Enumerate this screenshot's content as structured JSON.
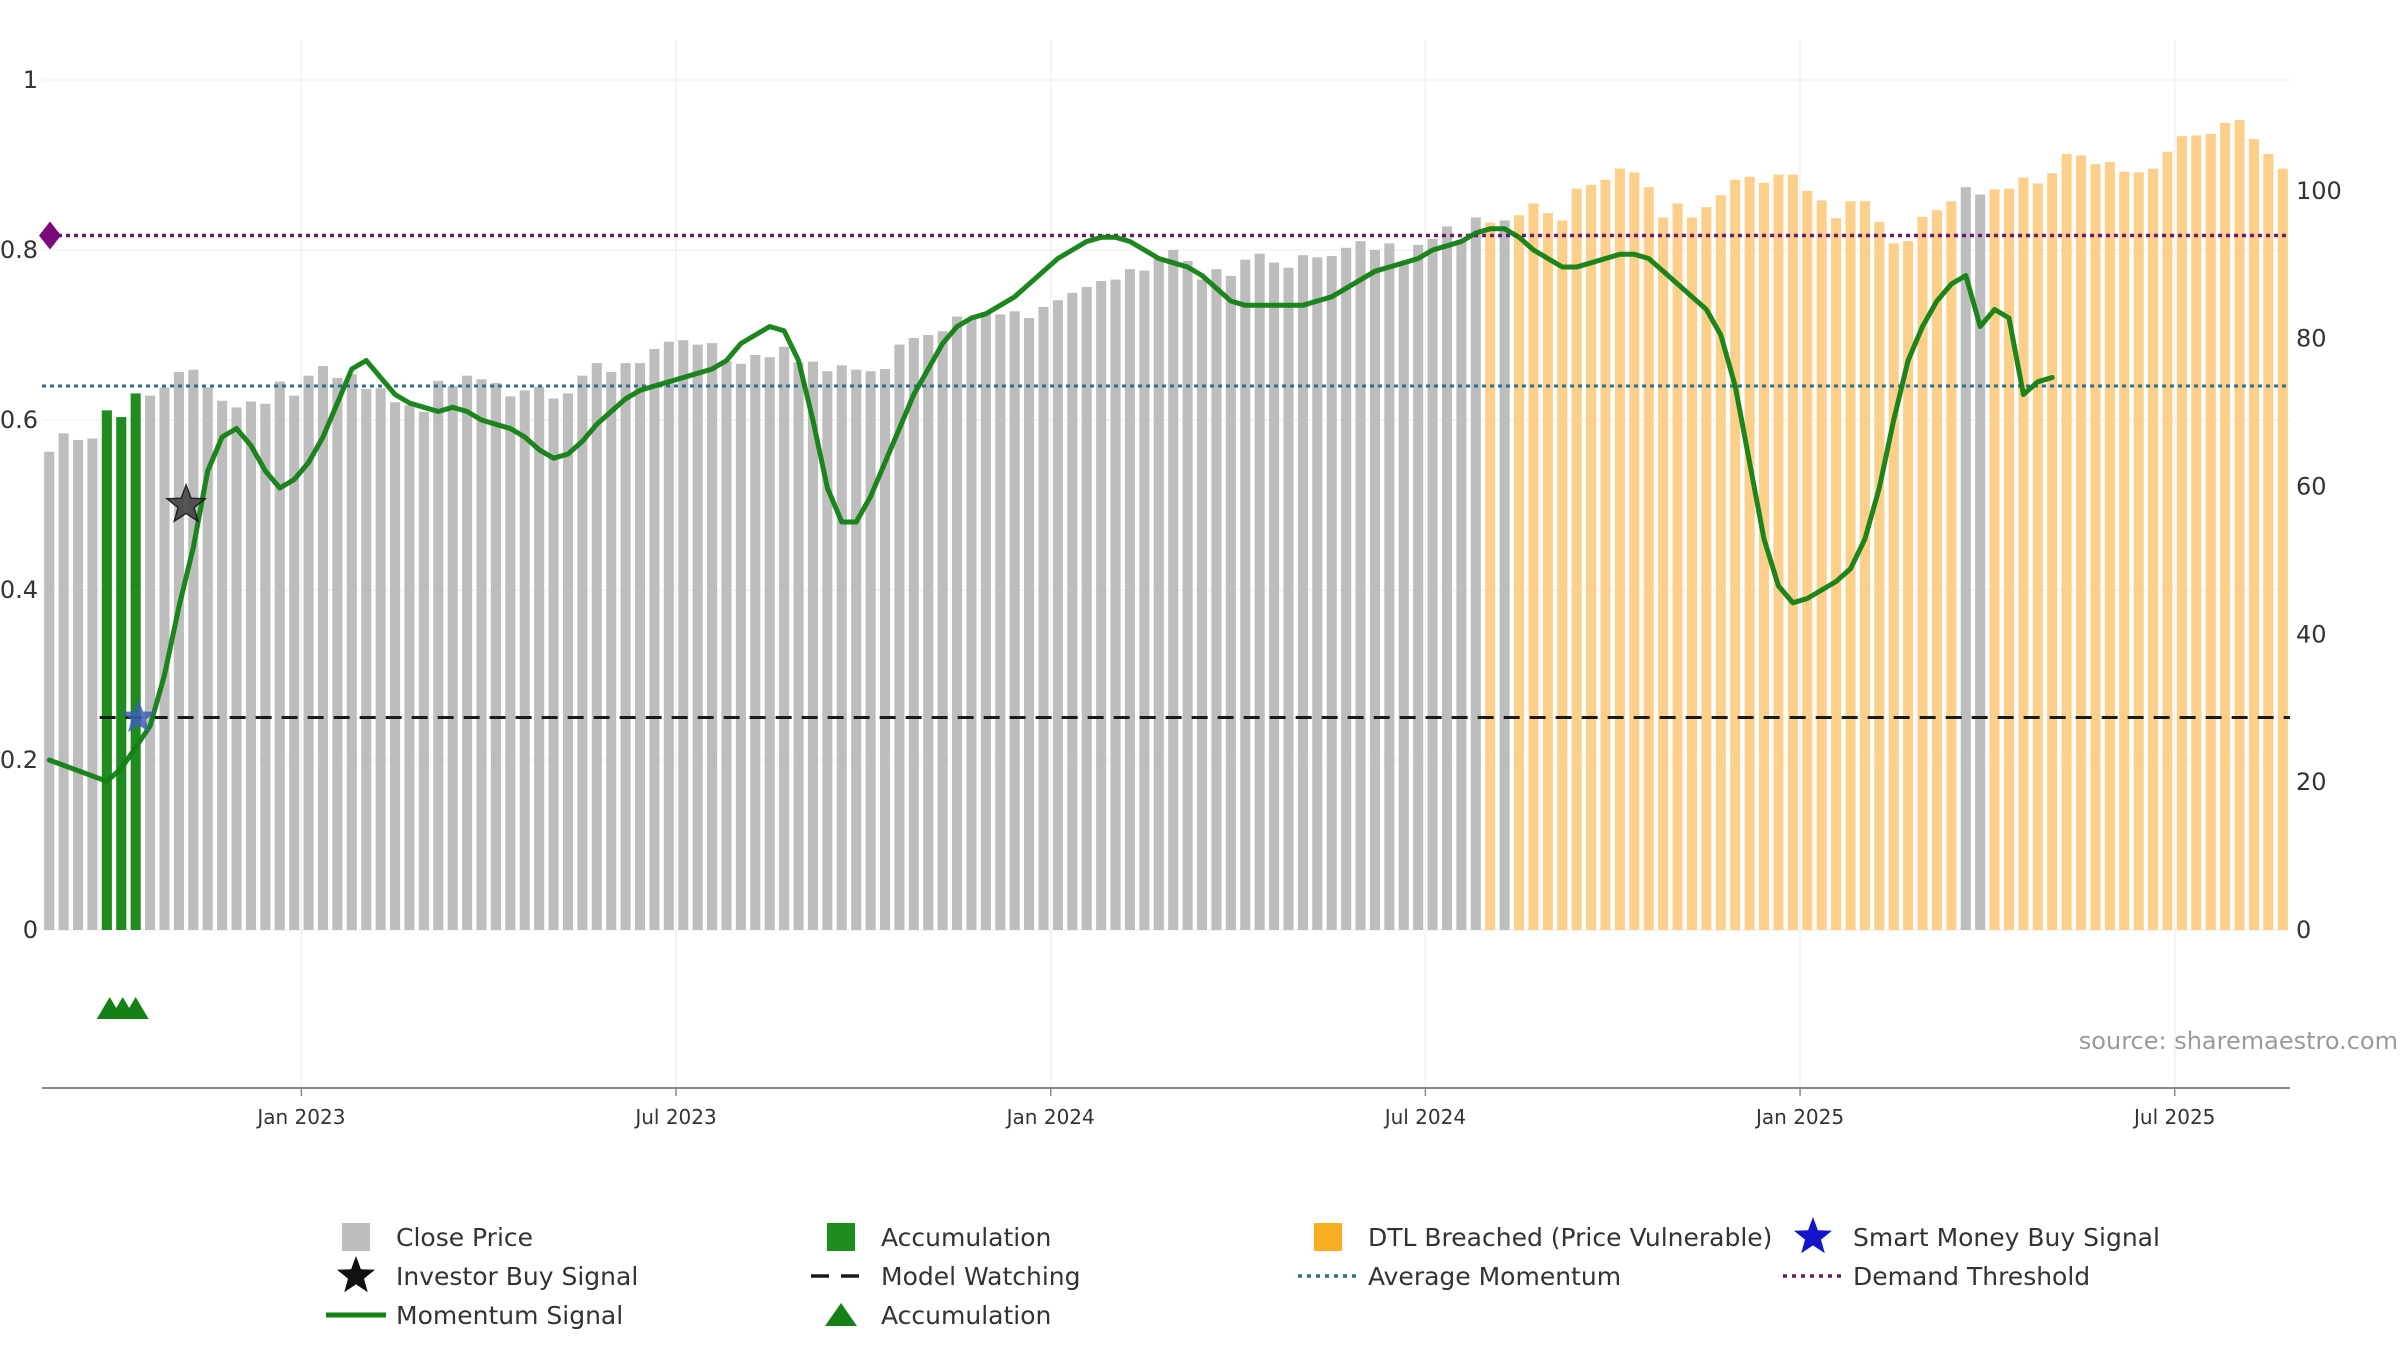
{
  "chart_data": {
    "type": "bar",
    "title": "",
    "source": "source: sharemaestro.com",
    "x_ticks": [
      "Jan 2023",
      "Jul 2023",
      "Jan 2024",
      "Jul 2024",
      "Jan 2025",
      "Jul 2025"
    ],
    "x_tick_weeks": [
      18,
      44,
      70,
      96,
      122,
      148
    ],
    "weeks": 156,
    "left_axis": {
      "range": [
        0,
        1
      ],
      "ticks": [
        0,
        0.2,
        0.4,
        0.6,
        0.8,
        1
      ],
      "tick_labels": [
        "0",
        "0.2",
        "0.4",
        "0.6",
        "0.8",
        "1"
      ]
    },
    "right_axis": {
      "range": [
        0,
        115
      ],
      "ticks": [
        0,
        20,
        40,
        60,
        80,
        100
      ],
      "tick_labels": [
        "0",
        "20",
        "40",
        "60",
        "80",
        "100"
      ]
    },
    "close_price": [
      64.7,
      67.2,
      66.3,
      66.5,
      70.3,
      69.4,
      72.6,
      72.3,
      73.4,
      75.5,
      75.8,
      73.4,
      71.6,
      70.7,
      71.5,
      71.2,
      74.2,
      72.3,
      75.0,
      76.3,
      74.7,
      75.2,
      73.2,
      73.3,
      71.4,
      71.0,
      70.1,
      74.3,
      73.6,
      75.0,
      74.5,
      74.0,
      72.2,
      73.0,
      73.5,
      71.9,
      72.6,
      75.0,
      76.7,
      75.5,
      76.7,
      76.7,
      78.6,
      79.6,
      79.8,
      79.2,
      79.4,
      77.0,
      76.6,
      77.8,
      77.5,
      78.9,
      76.8,
      76.9,
      75.6,
      76.4,
      75.8,
      75.6,
      75.9,
      79.2,
      80.1,
      80.5,
      81.0,
      83.0,
      82.7,
      83.6,
      83.3,
      83.7,
      82.8,
      84.3,
      85.2,
      86.2,
      87.0,
      87.8,
      88.0,
      89.4,
      89.2,
      91.0,
      92.0,
      90.5,
      88.0,
      89.4,
      88.5,
      90.7,
      91.5,
      90.3,
      89.6,
      91.3,
      91.0,
      91.2,
      92.3,
      93.2,
      92.0,
      92.9,
      90.3,
      92.7,
      93.5,
      95.2,
      93.4,
      96.4,
      95.7,
      96.0,
      96.7,
      98.3,
      97.0,
      96.0,
      100.3,
      100.8,
      101.5,
      103.0,
      102.5,
      100.5,
      96.4,
      98.3,
      96.4,
      97.8,
      99.4,
      101.5,
      101.9,
      101.1,
      102.2,
      102.2,
      100.0,
      98.7,
      96.3,
      98.6,
      98.6,
      95.8,
      92.9,
      93.2,
      96.5,
      97.4,
      98.6,
      100.5,
      99.5,
      100.2,
      100.3,
      101.8,
      101.0,
      102.4,
      105.0,
      104.8,
      103.6,
      103.9,
      102.6,
      102.5,
      103.0,
      105.3,
      107.4,
      107.5,
      107.7,
      109.2,
      109.6,
      107.0,
      105.0,
      103.0
    ],
    "bar_category": [
      "close",
      "close",
      "close",
      "close",
      "accumulation",
      "accumulation",
      "accumulation",
      "close",
      "close",
      "close",
      "close",
      "close",
      "close",
      "close",
      "close",
      "close",
      "close",
      "close",
      "close",
      "close",
      "close",
      "close",
      "close",
      "close",
      "close",
      "close",
      "close",
      "close",
      "close",
      "close",
      "close",
      "close",
      "close",
      "close",
      "close",
      "close",
      "close",
      "close",
      "close",
      "close",
      "close",
      "close",
      "close",
      "close",
      "close",
      "close",
      "close",
      "close",
      "close",
      "close",
      "close",
      "close",
      "close",
      "close",
      "close",
      "close",
      "close",
      "close",
      "close",
      "close",
      "close",
      "close",
      "close",
      "close",
      "close",
      "close",
      "close",
      "close",
      "close",
      "close",
      "close",
      "close",
      "close",
      "close",
      "close",
      "close",
      "close",
      "close",
      "close",
      "close",
      "close",
      "close",
      "close",
      "close",
      "close",
      "close",
      "close",
      "close",
      "close",
      "close",
      "close",
      "close",
      "close",
      "close",
      "close",
      "close",
      "close",
      "close",
      "close",
      "close",
      "dtl",
      "close",
      "dtl",
      "dtl",
      "dtl",
      "dtl",
      "dtl",
      "dtl",
      "dtl",
      "dtl",
      "dtl",
      "dtl",
      "dtl",
      "dtl",
      "dtl",
      "dtl",
      "dtl",
      "dtl",
      "dtl",
      "dtl",
      "dtl",
      "dtl",
      "dtl",
      "dtl",
      "dtl",
      "dtl",
      "dtl",
      "dtl",
      "dtl",
      "dtl",
      "dtl",
      "dtl",
      "dtl",
      "close",
      "close",
      "dtl",
      "dtl",
      "dtl",
      "dtl",
      "dtl",
      "dtl",
      "dtl",
      "dtl",
      "dtl",
      "dtl",
      "dtl",
      "dtl",
      "dtl",
      "dtl",
      "dtl",
      "dtl",
      "dtl",
      "dtl",
      "dtl",
      "dtl",
      "dtl"
    ],
    "momentum_signal": [
      [
        0,
        0.2
      ],
      [
        4,
        0.175
      ],
      [
        5,
        0.19
      ],
      [
        7,
        0.24
      ],
      [
        8,
        0.3
      ],
      [
        9,
        0.38
      ],
      [
        10,
        0.45
      ],
      [
        11,
        0.54
      ],
      [
        12,
        0.58
      ],
      [
        13,
        0.59
      ],
      [
        14,
        0.57
      ],
      [
        15,
        0.54
      ],
      [
        16,
        0.52
      ],
      [
        17,
        0.53
      ],
      [
        18,
        0.55
      ],
      [
        19,
        0.58
      ],
      [
        20,
        0.62
      ],
      [
        21,
        0.66
      ],
      [
        22,
        0.67
      ],
      [
        23,
        0.65
      ],
      [
        24,
        0.63
      ],
      [
        25,
        0.62
      ],
      [
        26,
        0.615
      ],
      [
        27,
        0.61
      ],
      [
        28,
        0.615
      ],
      [
        29,
        0.61
      ],
      [
        30,
        0.6
      ],
      [
        31,
        0.595
      ],
      [
        32,
        0.59
      ],
      [
        33,
        0.58
      ],
      [
        34,
        0.565
      ],
      [
        35,
        0.555
      ],
      [
        36,
        0.56
      ],
      [
        37,
        0.575
      ],
      [
        38,
        0.595
      ],
      [
        39,
        0.61
      ],
      [
        40,
        0.625
      ],
      [
        41,
        0.635
      ],
      [
        42,
        0.64
      ],
      [
        43,
        0.645
      ],
      [
        44,
        0.65
      ],
      [
        45,
        0.655
      ],
      [
        46,
        0.66
      ],
      [
        47,
        0.67
      ],
      [
        48,
        0.69
      ],
      [
        49,
        0.7
      ],
      [
        50,
        0.71
      ],
      [
        51,
        0.705
      ],
      [
        52,
        0.67
      ],
      [
        53,
        0.6
      ],
      [
        54,
        0.52
      ],
      [
        55,
        0.48
      ],
      [
        56,
        0.48
      ],
      [
        57,
        0.51
      ],
      [
        58,
        0.55
      ],
      [
        59,
        0.59
      ],
      [
        60,
        0.63
      ],
      [
        61,
        0.66
      ],
      [
        62,
        0.69
      ],
      [
        63,
        0.71
      ],
      [
        64,
        0.72
      ],
      [
        65,
        0.725
      ],
      [
        66,
        0.735
      ],
      [
        67,
        0.745
      ],
      [
        68,
        0.76
      ],
      [
        69,
        0.775
      ],
      [
        70,
        0.79
      ],
      [
        71,
        0.8
      ],
      [
        72,
        0.81
      ],
      [
        73,
        0.815
      ],
      [
        74,
        0.815
      ],
      [
        75,
        0.81
      ],
      [
        76,
        0.8
      ],
      [
        77,
        0.79
      ],
      [
        78,
        0.785
      ],
      [
        79,
        0.78
      ],
      [
        80,
        0.77
      ],
      [
        81,
        0.755
      ],
      [
        82,
        0.74
      ],
      [
        83,
        0.735
      ],
      [
        85,
        0.735
      ],
      [
        87,
        0.735
      ],
      [
        88,
        0.74
      ],
      [
        89,
        0.745
      ],
      [
        90,
        0.755
      ],
      [
        91,
        0.765
      ],
      [
        92,
        0.775
      ],
      [
        93,
        0.78
      ],
      [
        94,
        0.785
      ],
      [
        95,
        0.79
      ],
      [
        96,
        0.8
      ],
      [
        97,
        0.805
      ],
      [
        98,
        0.81
      ],
      [
        99,
        0.82
      ],
      [
        100,
        0.825
      ],
      [
        101,
        0.825
      ],
      [
        102,
        0.815
      ],
      [
        103,
        0.8
      ],
      [
        104,
        0.79
      ],
      [
        105,
        0.78
      ],
      [
        106,
        0.78
      ],
      [
        107,
        0.785
      ],
      [
        108,
        0.79
      ],
      [
        109,
        0.795
      ],
      [
        110,
        0.795
      ],
      [
        111,
        0.79
      ],
      [
        112,
        0.775
      ],
      [
        113,
        0.76
      ],
      [
        114,
        0.745
      ],
      [
        115,
        0.73
      ],
      [
        116,
        0.7
      ],
      [
        117,
        0.64
      ],
      [
        118,
        0.55
      ],
      [
        119,
        0.46
      ],
      [
        120,
        0.405
      ],
      [
        121,
        0.385
      ],
      [
        122,
        0.39
      ],
      [
        123,
        0.4
      ],
      [
        124,
        0.41
      ],
      [
        125,
        0.425
      ],
      [
        126,
        0.46
      ],
      [
        127,
        0.52
      ],
      [
        128,
        0.6
      ],
      [
        129,
        0.67
      ],
      [
        130,
        0.71
      ],
      [
        131,
        0.74
      ],
      [
        132,
        0.76
      ],
      [
        133,
        0.77
      ],
      [
        134,
        0.71
      ],
      [
        135,
        0.73
      ],
      [
        136,
        0.72
      ],
      [
        137,
        0.63
      ],
      [
        138,
        0.645
      ],
      [
        139,
        0.65
      ]
    ],
    "investor_buy_signal": {
      "week": 9.5,
      "value": 0.5
    },
    "smart_money_buy_signal": {
      "week": 6.2,
      "value": 0.25
    },
    "model_watching": {
      "value": 0.25,
      "from_week": 3.5,
      "to_week": 155.5
    },
    "average_momentum": {
      "value": 0.64
    },
    "demand_threshold": {
      "value": 0.817
    },
    "accumulation_markers": [
      4.2,
      5.1,
      6.0
    ],
    "legend": [
      {
        "label": "Close Price",
        "key": "close-price"
      },
      {
        "label": "Accumulation",
        "key": "accumulation-bar"
      },
      {
        "label": "DTL Breached (Price Vulnerable)",
        "key": "dtl-breached"
      },
      {
        "label": "Smart Money Buy Signal",
        "key": "smart-money"
      },
      {
        "label": "Investor Buy Signal",
        "key": "investor-buy"
      },
      {
        "label": "Model Watching",
        "key": "model-watching"
      },
      {
        "label": "Average Momentum",
        "key": "average-momentum"
      },
      {
        "label": "Demand Threshold",
        "key": "demand-threshold"
      },
      {
        "label": "Momentum Signal",
        "key": "momentum-signal"
      },
      {
        "label": "Accumulation",
        "key": "accumulation-marker"
      }
    ]
  },
  "colors": {
    "close_price": "#bdbdbd",
    "accumulation": "#1e8c1e",
    "dtl_breached": "#fcd08a",
    "momentum_signal": "#128012",
    "model_watching": "#1a1a1a",
    "average_momentum": "#2e6f8e",
    "demand_threshold": "#6a1a6a",
    "smart_money": "#1414c8",
    "investor_buy": "#111111",
    "accumulation_marker": "#158015"
  }
}
